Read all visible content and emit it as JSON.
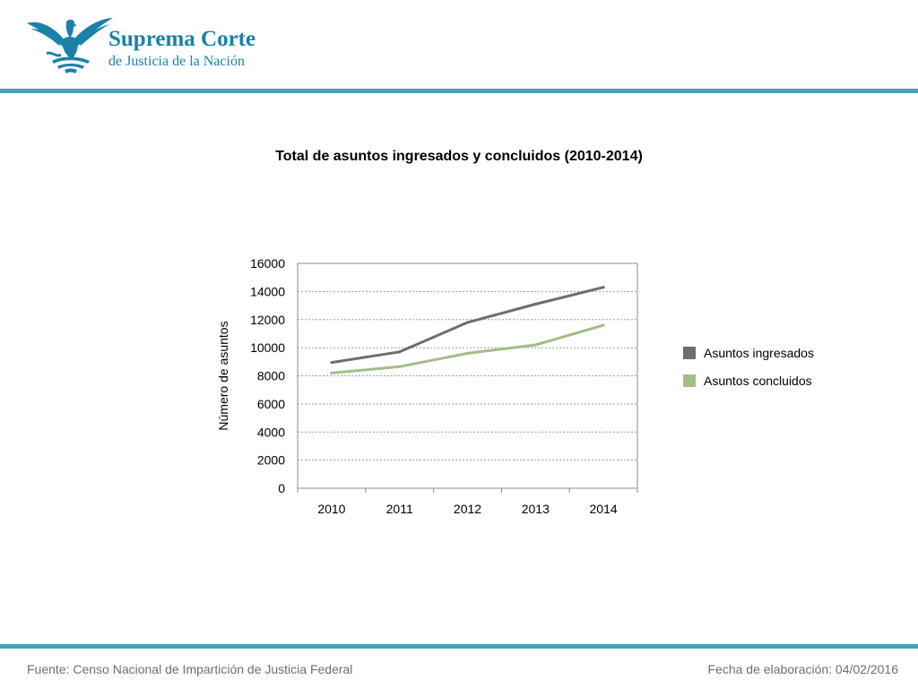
{
  "header": {
    "brand_line1": "Suprema Corte",
    "brand_line2": "de Justicia de la Nación",
    "logo_icon": "eagle-emblem-icon",
    "accent_color": "#1a82a8",
    "rule_color": "#4a9fc0"
  },
  "chart_data": {
    "type": "line",
    "title": "Total de asuntos ingresados y concluidos (2010-2014)",
    "xlabel": "",
    "ylabel": "Número de asuntos",
    "categories": [
      "2010",
      "2011",
      "2012",
      "2013",
      "2014"
    ],
    "ylim": [
      0,
      16000
    ],
    "yticks": [
      "0",
      "2000",
      "4000",
      "6000",
      "8000",
      "10000",
      "12000",
      "14000",
      "16000"
    ],
    "grid": true,
    "legend_position": "right",
    "series": [
      {
        "name": "Asuntos ingresados",
        "color": "#6d6d6d",
        "values": [
          8950,
          9700,
          11800,
          13100,
          14300
        ]
      },
      {
        "name": "Asuntos concluidos",
        "color": "#a3bd88",
        "values": [
          8200,
          8650,
          9600,
          10200,
          11600
        ]
      }
    ]
  },
  "footer": {
    "source": "Fuente: Censo Nacional de Impartición de Justicia Federal",
    "date": "Fecha de elaboración: 04/02/2016"
  }
}
